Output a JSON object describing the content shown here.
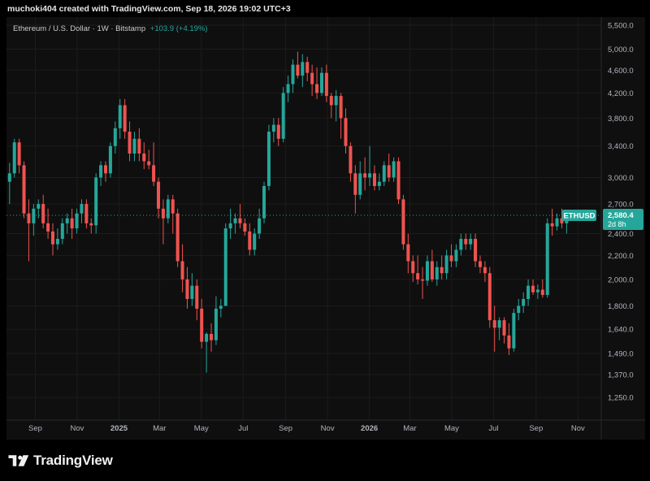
{
  "header": {
    "credit": "muchoki404 created with TradingView.com, Sep 18, 2026 19:02 UTC+3"
  },
  "legend": {
    "symbol_line": "Ethereum / U.S. Dollar · 1W · Bitstamp",
    "change": "+103.9 (+4.19%)"
  },
  "footer": {
    "brand": "TradingView"
  },
  "colors": {
    "up": "#26a69a",
    "down": "#ef5350",
    "price_label": "#26a69a",
    "background": "#0f0f0f"
  },
  "chart_data": {
    "type": "candlestick",
    "title": "Ethereum / U.S. Dollar · 1W · Bitstamp",
    "y_scale": "log",
    "ylim": [
      1150,
      5500
    ],
    "y_ticks": [
      5500,
      5000,
      4600,
      4200,
      3800,
      3400,
      3000,
      2700,
      2400,
      2200,
      2000,
      1800,
      1640,
      1490,
      1370,
      1250
    ],
    "y_tick_labels": [
      "5,500.0",
      "5,000.0",
      "4,600.0",
      "4,200.0",
      "3,800.0",
      "3,400.0",
      "3,000.0",
      "2,700.0",
      "2,400.0",
      "2,200.0",
      "2,000.0",
      "1,800.0",
      "1,640.0",
      "1,490.0",
      "1,370.0",
      "1,250.0"
    ],
    "x_range": [
      "2024-07-21",
      "2026-12-05"
    ],
    "x_ticks": [
      {
        "label": "Sep",
        "date": "2024-09-01"
      },
      {
        "label": "Nov",
        "date": "2024-11-01"
      },
      {
        "label": "2025",
        "date": "2025-01-01"
      },
      {
        "label": "Mar",
        "date": "2025-03-01"
      },
      {
        "label": "May",
        "date": "2025-05-01"
      },
      {
        "label": "Jul",
        "date": "2025-07-01"
      },
      {
        "label": "Sep",
        "date": "2025-09-01"
      },
      {
        "label": "Nov",
        "date": "2025-11-01"
      },
      {
        "label": "2026",
        "date": "2026-01-01"
      },
      {
        "label": "Mar",
        "date": "2026-03-01"
      },
      {
        "label": "May",
        "date": "2026-05-01"
      },
      {
        "label": "Jul",
        "date": "2026-07-01"
      },
      {
        "label": "Sep",
        "date": "2026-09-01"
      },
      {
        "label": "Nov",
        "date": "2026-11-01"
      }
    ],
    "first_candle_date": "2024-07-22",
    "candle_interval": "1W",
    "candles": [
      [
        2950,
        3180,
        2700,
        3050
      ],
      [
        3050,
        3500,
        3000,
        3450
      ],
      [
        3450,
        3500,
        3050,
        3150
      ],
      [
        3150,
        3200,
        2550,
        2600
      ],
      [
        2600,
        2750,
        2150,
        2500
      ],
      [
        2500,
        2700,
        2380,
        2650
      ],
      [
        2650,
        2750,
        2550,
        2700
      ],
      [
        2700,
        2800,
        2450,
        2500
      ],
      [
        2500,
        2650,
        2350,
        2420
      ],
      [
        2420,
        2500,
        2200,
        2300
      ],
      [
        2300,
        2450,
        2250,
        2350
      ],
      [
        2350,
        2550,
        2300,
        2500
      ],
      [
        2500,
        2600,
        2400,
        2550
      ],
      [
        2550,
        2650,
        2350,
        2450
      ],
      [
        2450,
        2650,
        2400,
        2600
      ],
      [
        2600,
        2750,
        2500,
        2700
      ],
      [
        2700,
        2750,
        2450,
        2500
      ],
      [
        2500,
        2550,
        2400,
        2480
      ],
      [
        2480,
        3050,
        2400,
        3000
      ],
      [
        3000,
        3200,
        2900,
        3150
      ],
      [
        3150,
        3200,
        2950,
        3050
      ],
      [
        3050,
        3450,
        3000,
        3400
      ],
      [
        3400,
        3750,
        3300,
        3650
      ],
      [
        3650,
        4100,
        3500,
        4000
      ],
      [
        4000,
        4100,
        3500,
        3600
      ],
      [
        3600,
        3750,
        3200,
        3300
      ],
      [
        3300,
        3600,
        3200,
        3500
      ],
      [
        3500,
        3650,
        3200,
        3300
      ],
      [
        3300,
        3450,
        3100,
        3200
      ],
      [
        3200,
        3350,
        3100,
        3150
      ],
      [
        3150,
        3450,
        2900,
        2950
      ],
      [
        2950,
        3000,
        2550,
        2650
      ],
      [
        2650,
        2750,
        2300,
        2550
      ],
      [
        2550,
        2800,
        2500,
        2750
      ],
      [
        2750,
        2800,
        2400,
        2600
      ],
      [
        2600,
        2650,
        2100,
        2150
      ],
      [
        2150,
        2300,
        1900,
        2000
      ],
      [
        2000,
        2100,
        1780,
        1850
      ],
      [
        1850,
        2050,
        1800,
        1950
      ],
      [
        1950,
        2000,
        1700,
        1780
      ],
      [
        1780,
        1850,
        1520,
        1560
      ],
      [
        1560,
        1620,
        1380,
        1610
      ],
      [
        1610,
        1680,
        1500,
        1570
      ],
      [
        1570,
        1870,
        1540,
        1780
      ],
      [
        1780,
        1850,
        1720,
        1800
      ],
      [
        1800,
        2500,
        1800,
        2450
      ],
      [
        2450,
        2650,
        2350,
        2500
      ],
      [
        2500,
        2600,
        2400,
        2550
      ],
      [
        2550,
        2700,
        2450,
        2500
      ],
      [
        2500,
        2550,
        2380,
        2420
      ],
      [
        2420,
        2500,
        2200,
        2250
      ],
      [
        2250,
        2450,
        2200,
        2400
      ],
      [
        2400,
        2650,
        2350,
        2550
      ],
      [
        2550,
        2950,
        2500,
        2900
      ],
      [
        2900,
        3700,
        2850,
        3600
      ],
      [
        3600,
        3800,
        3450,
        3700
      ],
      [
        3700,
        3800,
        3400,
        3500
      ],
      [
        3500,
        4300,
        3450,
        4200
      ],
      [
        4200,
        4500,
        4050,
        4350
      ],
      [
        4350,
        4800,
        4200,
        4700
      ],
      [
        4700,
        4950,
        4450,
        4500
      ],
      [
        4500,
        4900,
        4300,
        4750
      ],
      [
        4750,
        4850,
        4400,
        4550
      ],
      [
        4550,
        4700,
        4150,
        4350
      ],
      [
        4350,
        4650,
        4100,
        4200
      ],
      [
        4200,
        4650,
        4150,
        4550
      ],
      [
        4550,
        4700,
        4050,
        4150
      ],
      [
        4150,
        4200,
        3800,
        4000
      ],
      [
        4000,
        4250,
        3750,
        4150
      ],
      [
        4150,
        4200,
        3500,
        3800
      ],
      [
        3800,
        3950,
        3300,
        3400
      ],
      [
        3400,
        3450,
        2950,
        3050
      ],
      [
        3050,
        3150,
        2600,
        2800
      ],
      [
        2800,
        3200,
        2750,
        3050
      ],
      [
        3050,
        3250,
        2850,
        3000
      ],
      [
        3000,
        3400,
        2900,
        3050
      ],
      [
        3050,
        3150,
        2850,
        2900
      ],
      [
        2900,
        3050,
        2850,
        2950
      ],
      [
        2950,
        3200,
        2900,
        3150
      ],
      [
        3150,
        3300,
        2950,
        3000
      ],
      [
        3000,
        3250,
        2950,
        3200
      ],
      [
        3200,
        3250,
        2700,
        2750
      ],
      [
        2750,
        2800,
        2250,
        2300
      ],
      [
        2300,
        2400,
        2050,
        2150
      ],
      [
        2150,
        2200,
        1980,
        2050
      ],
      [
        2050,
        2200,
        1960,
        2000
      ],
      [
        2000,
        2100,
        1850,
        1990
      ],
      [
        1990,
        2200,
        1950,
        2150
      ],
      [
        2150,
        2250,
        1980,
        2000
      ],
      [
        2000,
        2150,
        1950,
        2100
      ],
      [
        2100,
        2200,
        2000,
        2050
      ],
      [
        2050,
        2250,
        2000,
        2200
      ],
      [
        2200,
        2300,
        2100,
        2150
      ],
      [
        2150,
        2300,
        2100,
        2250
      ],
      [
        2250,
        2400,
        2200,
        2350
      ],
      [
        2350,
        2400,
        2250,
        2300
      ],
      [
        2300,
        2400,
        2250,
        2350
      ],
      [
        2350,
        2400,
        2100,
        2150
      ],
      [
        2150,
        2200,
        2050,
        2100
      ],
      [
        2100,
        2150,
        1980,
        2050
      ],
      [
        2050,
        2100,
        1650,
        1700
      ],
      [
        1700,
        1800,
        1500,
        1650
      ],
      [
        1650,
        1720,
        1570,
        1700
      ],
      [
        1700,
        1720,
        1550,
        1600
      ],
      [
        1600,
        1680,
        1480,
        1520
      ],
      [
        1520,
        1780,
        1500,
        1750
      ],
      [
        1750,
        1850,
        1700,
        1800
      ],
      [
        1800,
        1900,
        1750,
        1850
      ],
      [
        1850,
        2000,
        1800,
        1950
      ],
      [
        1950,
        2000,
        1880,
        1900
      ],
      [
        1900,
        1960,
        1850,
        1920
      ],
      [
        1920,
        2000,
        1860,
        1880
      ],
      [
        1880,
        2550,
        1860,
        2500
      ],
      [
        2500,
        2650,
        2380,
        2470
      ],
      [
        2470,
        2600,
        2430,
        2550
      ],
      [
        2550,
        2650,
        2450,
        2500
      ],
      [
        2500,
        2620,
        2400,
        2580
      ]
    ],
    "last_price": {
      "symbol": "ETHUSD",
      "price_label": "2,580.4",
      "value": 2580.4,
      "countdown": "2d 8h"
    }
  }
}
